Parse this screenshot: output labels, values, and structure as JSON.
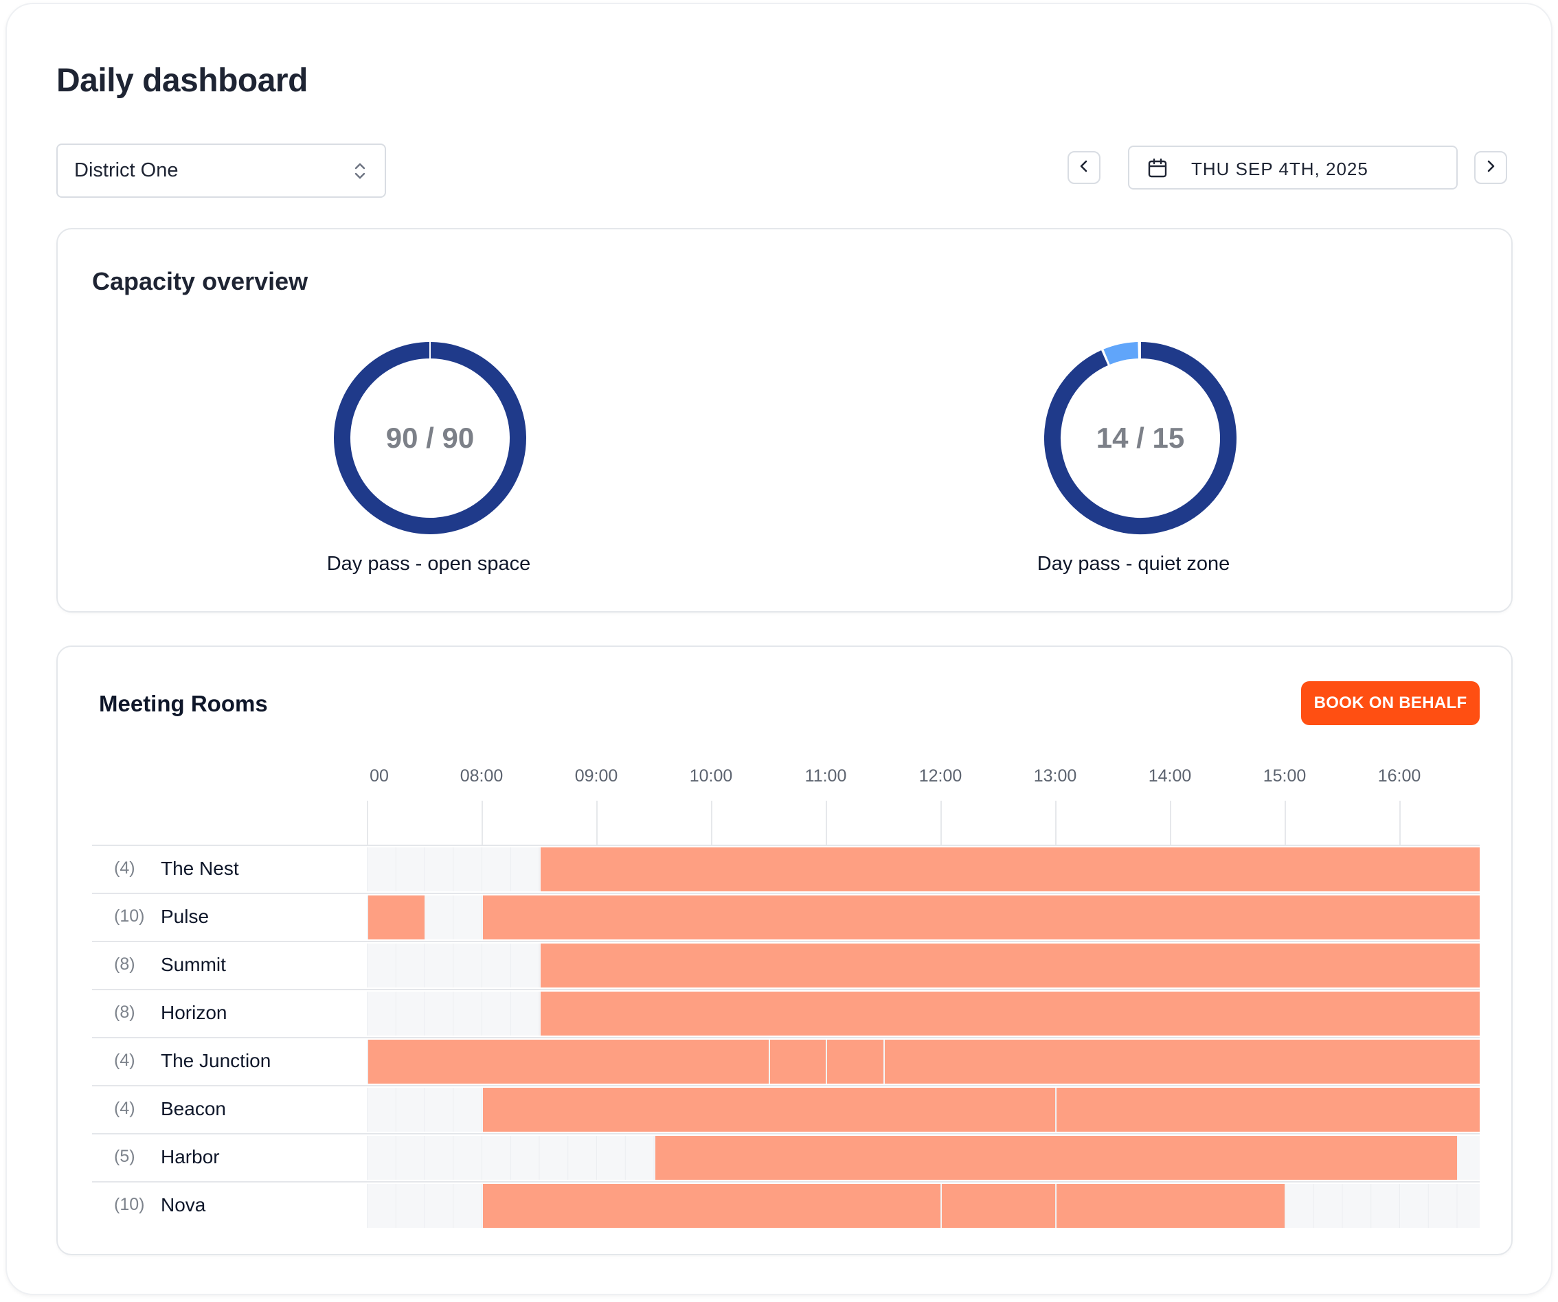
{
  "page": {
    "title": "Daily dashboard"
  },
  "location_select": {
    "value": "District One"
  },
  "date_nav": {
    "date": "THU SEP 4TH, 2025"
  },
  "capacity": {
    "title": "Capacity overview",
    "pools": [
      {
        "label": "Day pass - open space",
        "value_text": "90 / 90",
        "booked": 90,
        "total": 90
      },
      {
        "label": "Day pass - quiet zone",
        "value_text": "14 / 15",
        "booked": 14,
        "total": 15
      }
    ]
  },
  "colors": {
    "donut_booked": "#1f3a8a",
    "donut_free": "#60a5fa",
    "booking": "#fe9f82",
    "accent": "#ff4f12"
  },
  "meeting_rooms": {
    "title": "Meeting Rooms",
    "book_button": "BOOK ON BEHALF",
    "hour_labels": [
      "00",
      "08:00",
      "09:00",
      "10:00",
      "11:00",
      "12:00",
      "13:00",
      "14:00",
      "15:00",
      "16:00"
    ],
    "rooms": [
      {
        "capacity": "(4)",
        "name": "The Nest",
        "bookings": [
          [
            "08:30",
            "16:45"
          ]
        ]
      },
      {
        "capacity": "(10)",
        "name": "Pulse",
        "bookings": [
          [
            "07:00",
            "07:30"
          ],
          [
            "08:00",
            "16:45"
          ]
        ]
      },
      {
        "capacity": "(8)",
        "name": "Summit",
        "bookings": [
          [
            "08:30",
            "16:45"
          ]
        ]
      },
      {
        "capacity": "(8)",
        "name": "Horizon",
        "bookings": [
          [
            "08:30",
            "16:45"
          ]
        ]
      },
      {
        "capacity": "(4)",
        "name": "The Junction",
        "bookings": [
          [
            "07:00",
            "10:30"
          ],
          [
            "10:30",
            "11:00"
          ],
          [
            "11:00",
            "11:30"
          ],
          [
            "11:30",
            "16:45"
          ]
        ]
      },
      {
        "capacity": "(4)",
        "name": "Beacon",
        "bookings": [
          [
            "08:00",
            "13:00"
          ],
          [
            "13:00",
            "16:45"
          ]
        ]
      },
      {
        "capacity": "(5)",
        "name": "Harbor",
        "bookings": [
          [
            "09:30",
            "16:30"
          ]
        ]
      },
      {
        "capacity": "(10)",
        "name": "Nova",
        "bookings": [
          [
            "08:00",
            "12:00"
          ],
          [
            "12:00",
            "13:00"
          ],
          [
            "13:00",
            "15:00"
          ]
        ]
      }
    ]
  }
}
